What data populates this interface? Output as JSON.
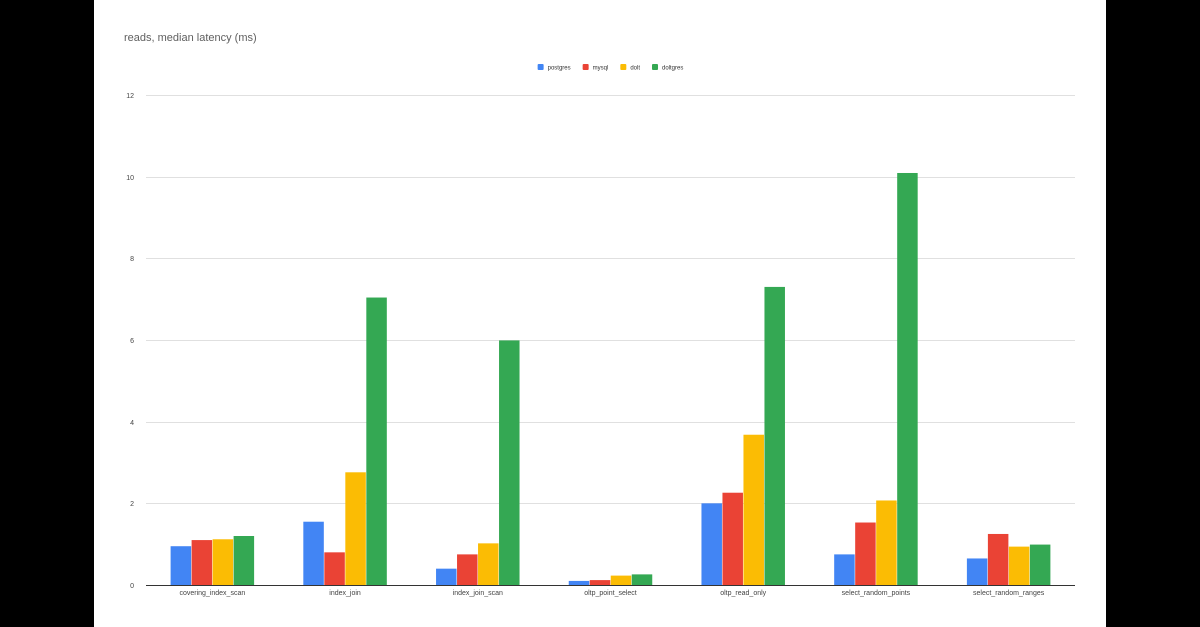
{
  "chart_data": {
    "type": "bar",
    "title": "reads, median latency (ms)",
    "xlabel": "",
    "ylabel": "",
    "ylim": [
      0,
      12
    ],
    "yticks": [
      0,
      2,
      4,
      6,
      8,
      10,
      12
    ],
    "grid": true,
    "legend_position": "top-center",
    "categories": [
      "covering_index_scan",
      "index_join",
      "index_join_scan",
      "oltp_point_select",
      "oltp_read_only",
      "select_random_points",
      "select_random_ranges"
    ],
    "series": [
      {
        "name": "postgres",
        "color": "#4285f4",
        "values": [
          0.95,
          1.55,
          0.4,
          0.1,
          2.0,
          0.75,
          0.65
        ]
      },
      {
        "name": "mysql",
        "color": "#ea4335",
        "values": [
          1.1,
          0.8,
          0.75,
          0.12,
          2.26,
          1.53,
          1.25
        ]
      },
      {
        "name": "dolt",
        "color": "#fbbc04",
        "values": [
          1.12,
          2.76,
          1.02,
          0.23,
          3.68,
          2.07,
          0.94
        ]
      },
      {
        "name": "doltgres",
        "color": "#34a853",
        "values": [
          1.2,
          7.04,
          5.99,
          0.26,
          7.3,
          10.09,
          0.99
        ]
      }
    ]
  }
}
